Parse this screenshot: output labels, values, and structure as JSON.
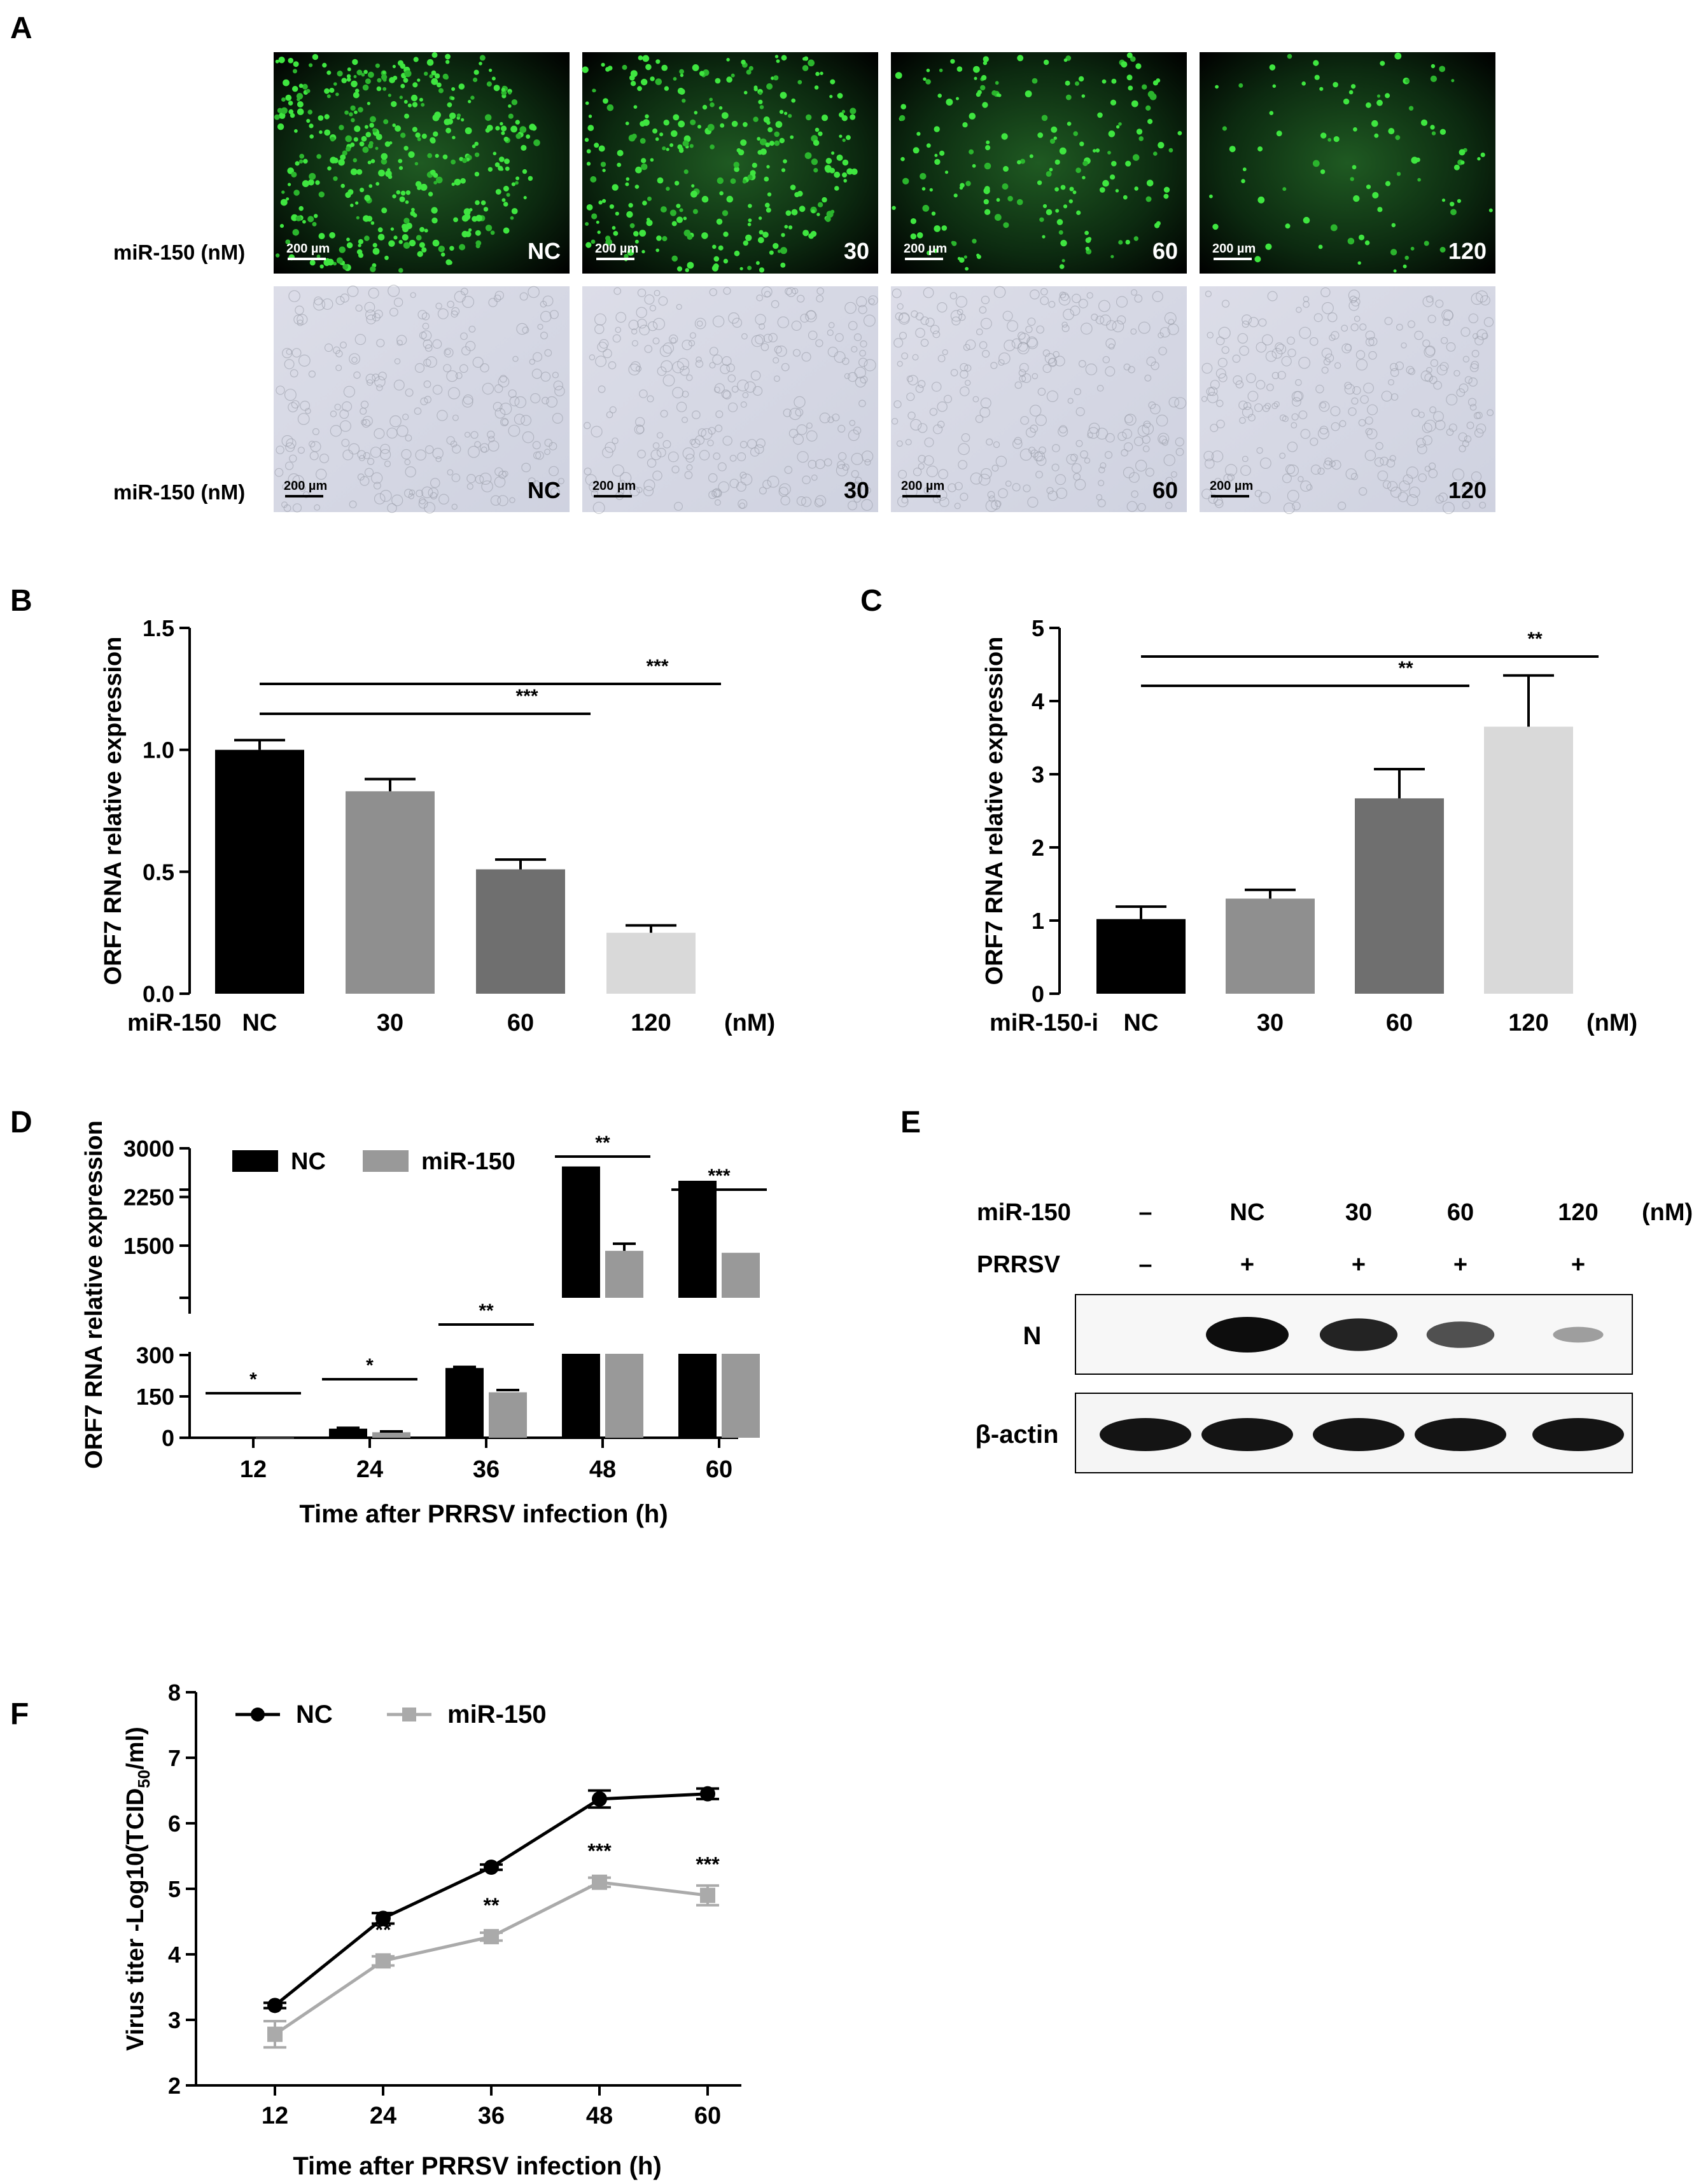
{
  "panels": {
    "A": {
      "letter": "A",
      "row_label": "miR-150 (nM)",
      "scale_bar": "200 µm",
      "top_row": [
        {
          "label": "NC",
          "density": 1.0
        },
        {
          "label": "30",
          "density": 0.72
        },
        {
          "label": "60",
          "density": 0.42
        },
        {
          "label": "120",
          "density": 0.2
        }
      ],
      "bottom_row": [
        {
          "label": "NC"
        },
        {
          "label": "30"
        },
        {
          "label": "60"
        },
        {
          "label": "120"
        }
      ]
    },
    "E": {
      "letter": "E",
      "mirna_label": "miR-150",
      "prrsv_label": "PRRSV",
      "unit": "(nM)",
      "lanes": [
        {
          "mirna": "–",
          "prrsv": "–",
          "n_intensity": 0,
          "actin_intensity": 1
        },
        {
          "mirna": "NC",
          "prrsv": "+",
          "n_intensity": 1,
          "actin_intensity": 1
        },
        {
          "mirna": "30",
          "prrsv": "+",
          "n_intensity": 0.85,
          "actin_intensity": 1
        },
        {
          "mirna": "60",
          "prrsv": "+",
          "n_intensity": 0.55,
          "actin_intensity": 1
        },
        {
          "mirna": "120",
          "prrsv": "+",
          "n_intensity": 0.02,
          "actin_intensity": 1
        }
      ],
      "blots": [
        "N",
        "β-actin"
      ]
    }
  },
  "chart_data": [
    {
      "panel": "B",
      "type": "bar",
      "ylabel": "ORF7 RNA relative expression",
      "group_label": "miR-150",
      "unit": "(nM)",
      "categories": [
        "NC",
        "30",
        "60",
        "120"
      ],
      "values": [
        1.0,
        0.83,
        0.51,
        0.25
      ],
      "errors": [
        0.04,
        0.05,
        0.04,
        0.03
      ],
      "colors": [
        "#000000",
        "#8f8f8f",
        "#6f6f6f",
        "#d9d9d9"
      ],
      "ylim": [
        0,
        1.5
      ],
      "yticks": [
        "0.0",
        "0.5",
        "1.0",
        "1.5"
      ],
      "significance": [
        {
          "from": 0,
          "to": 2,
          "label": "***"
        },
        {
          "from": 0,
          "to": 3,
          "label": "***"
        }
      ]
    },
    {
      "panel": "C",
      "type": "bar",
      "ylabel": "ORF7 RNA relative expression",
      "group_label": "miR-150-i",
      "unit": "(nM)",
      "categories": [
        "NC",
        "30",
        "60",
        "120"
      ],
      "values": [
        1.02,
        1.3,
        2.67,
        3.65
      ],
      "errors": [
        0.17,
        0.12,
        0.4,
        0.7
      ],
      "colors": [
        "#000000",
        "#8f8f8f",
        "#6f6f6f",
        "#d9d9d9"
      ],
      "ylim": [
        0,
        5
      ],
      "yticks": [
        "0",
        "1",
        "2",
        "3",
        "4",
        "5"
      ],
      "significance": [
        {
          "from": 0,
          "to": 2,
          "label": "**"
        },
        {
          "from": 0,
          "to": 3,
          "label": "**"
        }
      ]
    },
    {
      "panel": "D",
      "type": "bar",
      "ylabel": "ORF7 RNA relative expression",
      "xlabel": "Time after PRRSV infection (h)",
      "categories": [
        "12",
        "24",
        "36",
        "48",
        "60"
      ],
      "series": [
        {
          "name": "NC",
          "color": "#000000",
          "values": [
            1,
            33,
            253,
            2720,
            2500
          ],
          "errors": [
            0,
            3,
            4,
            10,
            10
          ]
        },
        {
          "name": "miR-150",
          "color": "#999999",
          "values": [
            0.5,
            20,
            165,
            1420,
            1390
          ],
          "errors": [
            0,
            3,
            8,
            110,
            15
          ]
        }
      ],
      "ylim_lower": [
        0,
        300
      ],
      "ylim_upper": [
        1200,
        3000
      ],
      "yticks_lower": [
        "0",
        "150",
        "300"
      ],
      "yticks_upper": [
        "1500",
        "2250",
        "3000"
      ],
      "significance": [
        "*",
        "*",
        "**",
        "**",
        "***"
      ],
      "legend": "top-left"
    },
    {
      "panel": "F",
      "type": "line",
      "ylabel_main": "Virus titer -Log10(TCID",
      "ylabel_sub": "50",
      "ylabel_end": "/ml)",
      "xlabel": "Time after PRRSV infection (h)",
      "x": [
        "12",
        "24",
        "36",
        "48",
        "60"
      ],
      "series": [
        {
          "name": "NC",
          "color": "#000000",
          "marker": "circle",
          "values": [
            3.22,
            4.55,
            5.33,
            6.37,
            6.45
          ],
          "errors": [
            0.04,
            0.08,
            0.04,
            0.13,
            0.08
          ]
        },
        {
          "name": "miR-150",
          "color": "#aaaaaa",
          "marker": "square",
          "values": [
            2.78,
            3.9,
            4.27,
            5.1,
            4.9
          ],
          "errors": [
            0.2,
            0.07,
            0.06,
            0.07,
            0.15
          ]
        }
      ],
      "ylim": [
        2,
        8
      ],
      "yticks": [
        "2",
        "3",
        "4",
        "5",
        "6",
        "7",
        "8"
      ],
      "significance": [
        "",
        "**",
        "**",
        "***",
        "***"
      ],
      "legend": "top-left"
    }
  ]
}
